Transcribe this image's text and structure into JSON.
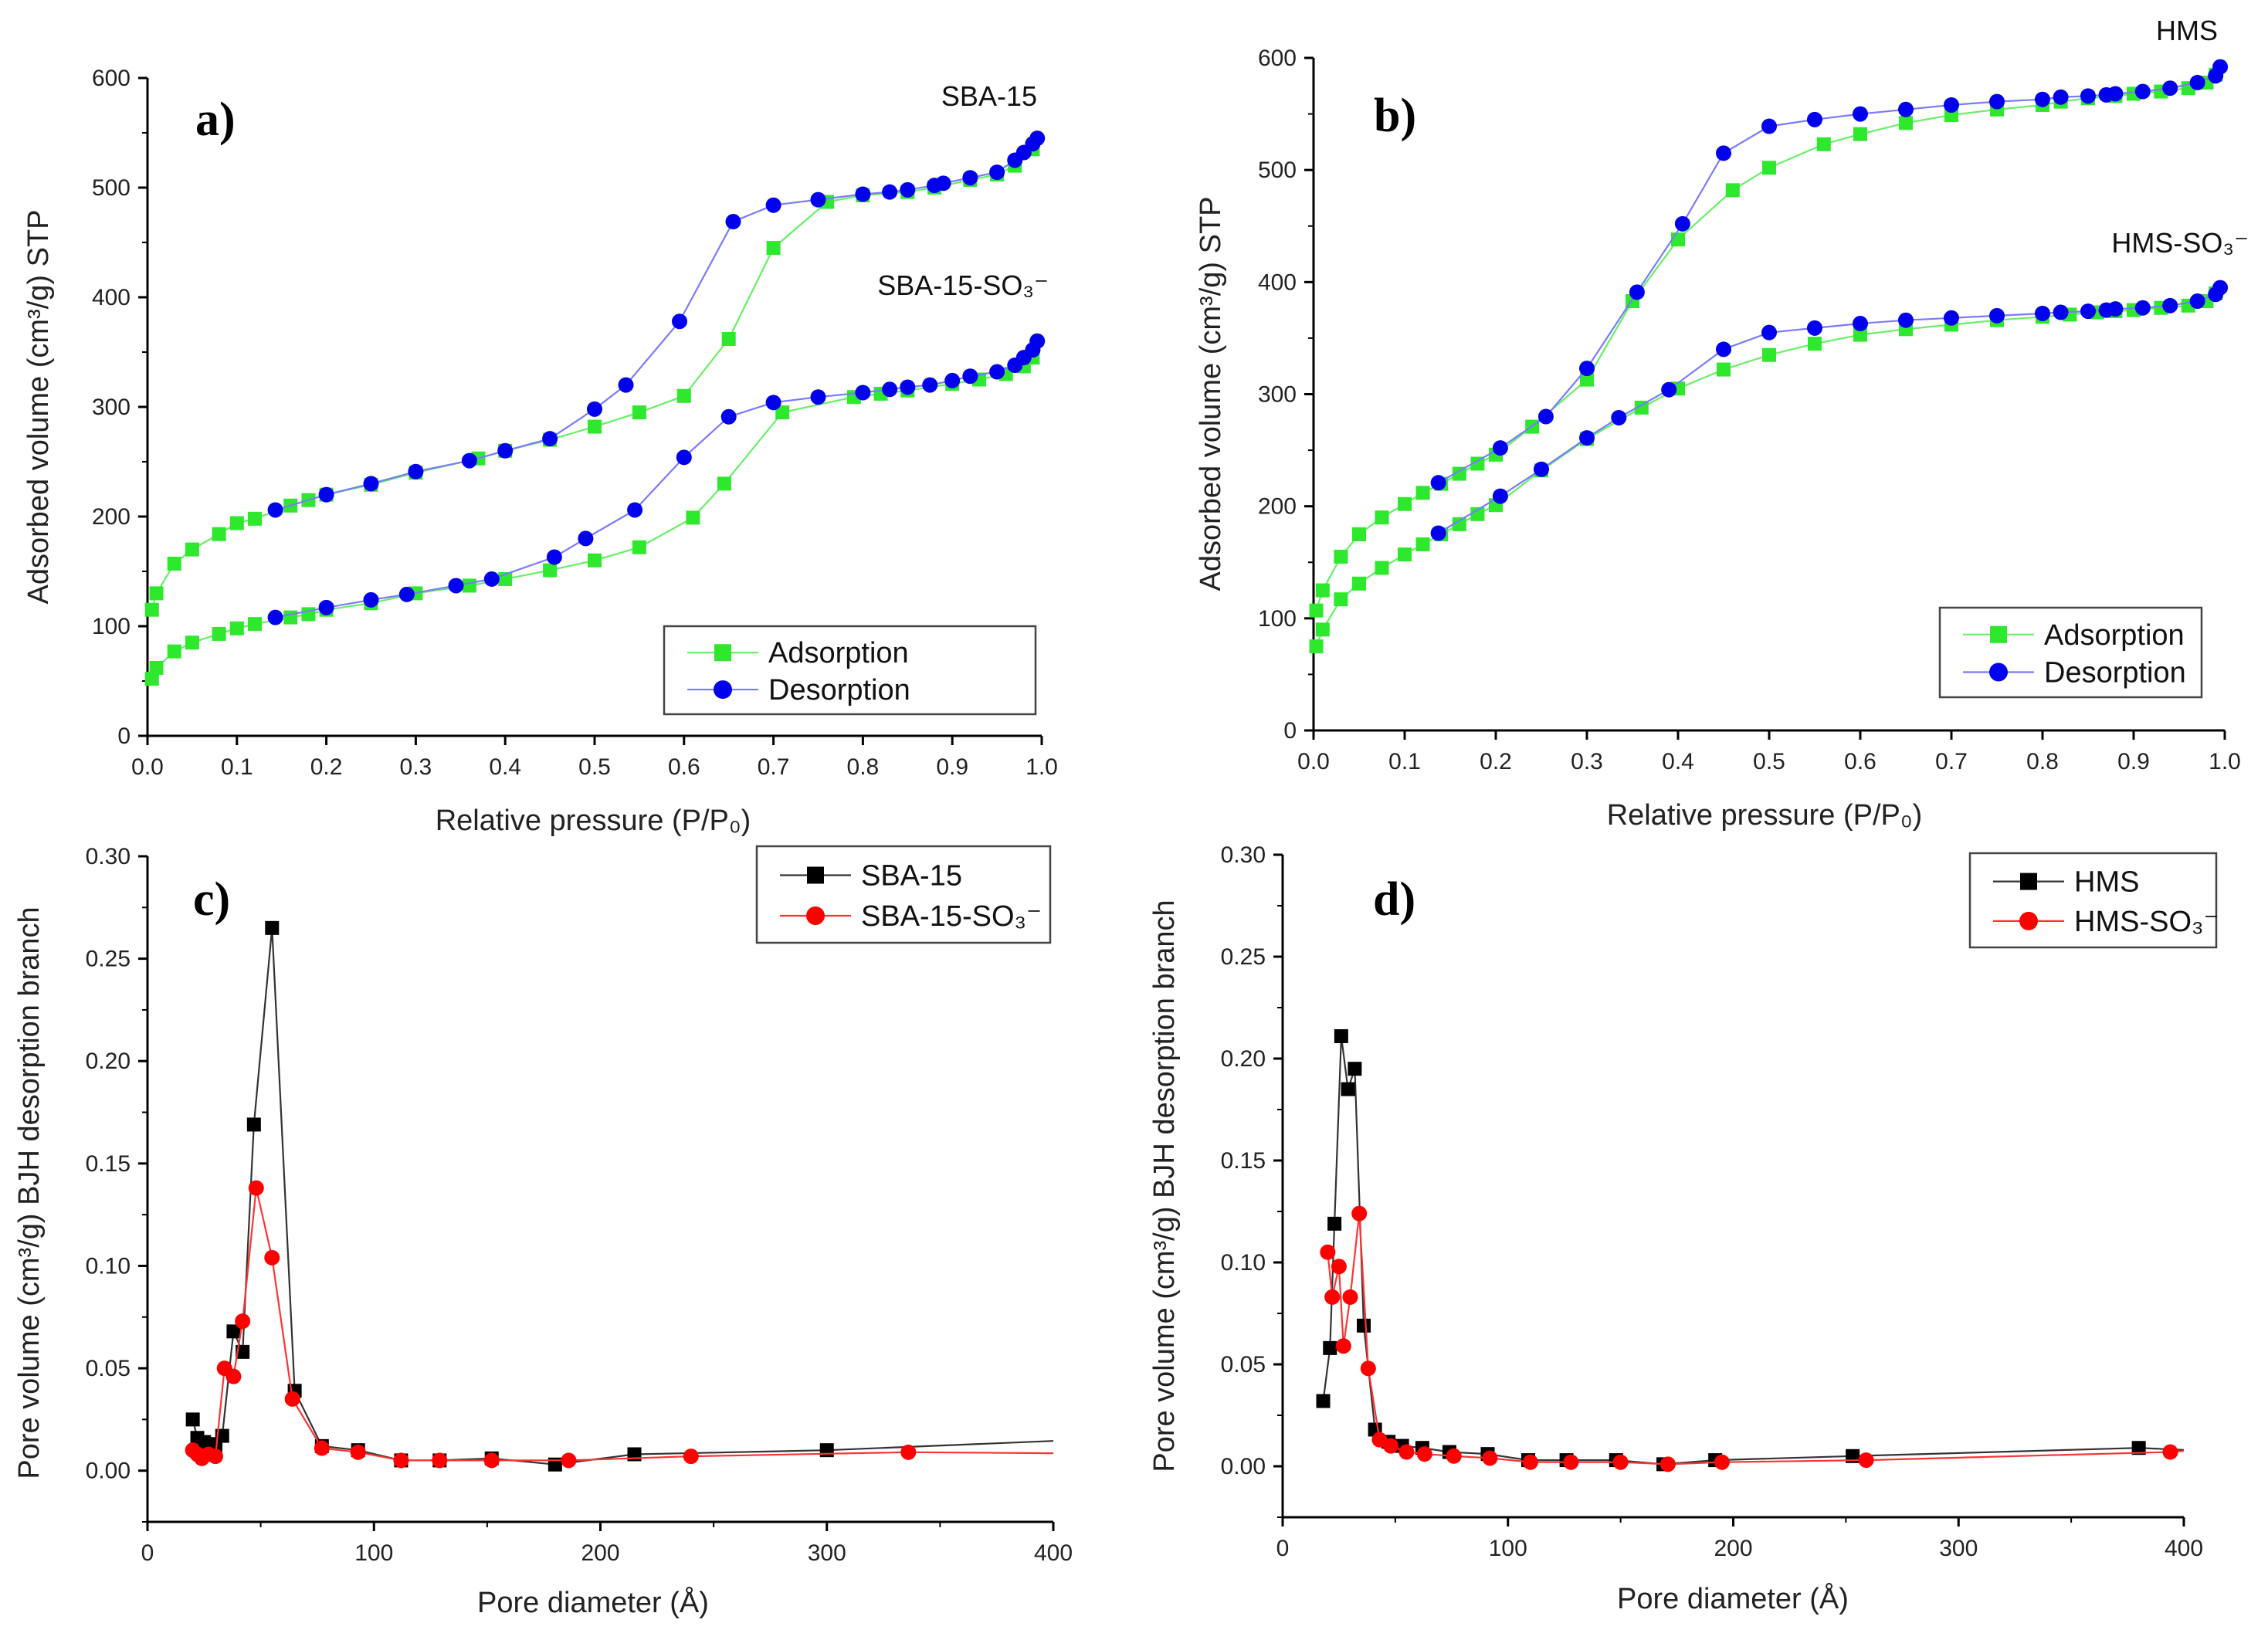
{
  "chart_data": [
    {
      "type": "line",
      "panel_label": "a)",
      "xlabel": "Relative pressure (P/P₀)",
      "ylabel": "Adsorbed volume (cm³/g) STP",
      "xlim": [
        0,
        1.0
      ],
      "ylim": [
        0,
        600
      ],
      "x_ticks": [
        "0.0",
        "0.1",
        "0.2",
        "0.3",
        "0.4",
        "0.5",
        "0.6",
        "0.7",
        "0.8",
        "0.9",
        "1.0"
      ],
      "y_ticks": [
        "0",
        "100",
        "200",
        "300",
        "400",
        "500",
        "600"
      ],
      "legend": {
        "placement": "bottom-right",
        "entries": [
          "Adsorption",
          "Desorption"
        ]
      },
      "annotations": [
        "SBA-15",
        "SBA-15-SO₃⁻"
      ],
      "series": [
        {
          "name": "Adsorption",
          "sample": "SBA-15",
          "color": "#2ee82e",
          "line": "#66f066",
          "marker": "square",
          "x": [
            0.005,
            0.01,
            0.03,
            0.05,
            0.08,
            0.1,
            0.12,
            0.16,
            0.18,
            0.2,
            0.25,
            0.3,
            0.37,
            0.4,
            0.45,
            0.5,
            0.55,
            0.6,
            0.65,
            0.7,
            0.76,
            0.8,
            0.85,
            0.88,
            0.92,
            0.95,
            0.97,
            0.99
          ],
          "y": [
            115,
            130,
            157,
            170,
            184,
            194,
            198,
            210,
            215,
            220,
            229,
            240,
            253,
            260,
            270,
            282,
            295,
            310,
            362,
            445,
            487,
            493,
            496,
            500,
            507,
            512,
            520,
            535
          ]
        },
        {
          "name": "Desorption",
          "sample": "SBA-15",
          "color": "#0000ee",
          "line": "#7a7aff",
          "marker": "circle",
          "x": [
            0.995,
            0.99,
            0.98,
            0.97,
            0.95,
            0.92,
            0.89,
            0.88,
            0.85,
            0.83,
            0.8,
            0.75,
            0.7,
            0.655,
            0.595,
            0.535,
            0.5,
            0.45,
            0.4,
            0.36,
            0.3,
            0.25,
            0.2,
            0.143
          ],
          "y": [
            545,
            540,
            532,
            525,
            514,
            509,
            504,
            502,
            498,
            496,
            494,
            489,
            484,
            469,
            378,
            320,
            298,
            271,
            260,
            251,
            241,
            230,
            220,
            206
          ]
        },
        {
          "name": "Adsorption",
          "sample": "SBA-15-SO₃⁻",
          "color": "#2ee82e",
          "line": "#66f066",
          "marker": "square",
          "x": [
            0.005,
            0.01,
            0.03,
            0.05,
            0.08,
            0.1,
            0.12,
            0.16,
            0.18,
            0.2,
            0.25,
            0.3,
            0.36,
            0.4,
            0.45,
            0.5,
            0.55,
            0.61,
            0.645,
            0.71,
            0.79,
            0.82,
            0.85,
            0.9,
            0.93,
            0.96,
            0.98,
            0.99
          ],
          "y": [
            52,
            62,
            77,
            85,
            93,
            98,
            102,
            108,
            111,
            115,
            121,
            130,
            137,
            143,
            151,
            160,
            172,
            199,
            230,
            295,
            309,
            312,
            315,
            321,
            325,
            330,
            337,
            345
          ]
        },
        {
          "name": "Desorption",
          "sample": "SBA-15-SO₃⁻",
          "color": "#0000ee",
          "line": "#7a7aff",
          "marker": "circle",
          "x": [
            0.995,
            0.99,
            0.98,
            0.97,
            0.95,
            0.92,
            0.9,
            0.875,
            0.85,
            0.83,
            0.8,
            0.75,
            0.7,
            0.65,
            0.6,
            0.545,
            0.49,
            0.455,
            0.385,
            0.345,
            0.29,
            0.25,
            0.2,
            0.143
          ],
          "y": [
            360,
            352,
            345,
            338,
            332,
            328,
            324,
            320,
            318,
            316,
            313,
            309,
            304,
            291,
            254,
            206,
            180,
            163,
            143,
            137,
            129,
            124,
            117,
            108
          ]
        }
      ]
    },
    {
      "type": "line",
      "panel_label": "b)",
      "xlabel": "Relative pressure (P/P₀)",
      "ylabel": "Adsorbed volume (cm³/g) STP",
      "xlim": [
        0,
        1.0
      ],
      "ylim": [
        0,
        600
      ],
      "x_ticks": [
        "0.0",
        "0.1",
        "0.2",
        "0.3",
        "0.4",
        "0.5",
        "0.6",
        "0.7",
        "0.8",
        "0.9",
        "1.0"
      ],
      "y_ticks": [
        "0",
        "100",
        "200",
        "300",
        "400",
        "500",
        "600"
      ],
      "legend": {
        "placement": "bottom-right",
        "entries": [
          "Adsorption",
          "Desorption"
        ]
      },
      "annotations": [
        "HMS",
        "HMS-SO₃⁻"
      ],
      "series": [
        {
          "name": "Adsorption",
          "sample": "HMS",
          "color": "#2ee82e",
          "line": "#66f066",
          "marker": "square",
          "x": [
            0.003,
            0.01,
            0.03,
            0.05,
            0.075,
            0.1,
            0.12,
            0.14,
            0.16,
            0.18,
            0.2,
            0.24,
            0.3,
            0.35,
            0.4,
            0.46,
            0.5,
            0.56,
            0.6,
            0.65,
            0.7,
            0.75,
            0.8,
            0.82,
            0.85,
            0.88,
            0.9,
            0.93,
            0.96,
            0.98,
            0.99
          ],
          "y": [
            107,
            125,
            155,
            175,
            190,
            202,
            212,
            220,
            229,
            238,
            246,
            271,
            313,
            383,
            438,
            482,
            502,
            523,
            532,
            542,
            549,
            554,
            558,
            561,
            564,
            566,
            568,
            570,
            573,
            578,
            585
          ]
        },
        {
          "name": "Desorption",
          "sample": "HMS",
          "color": "#0000ee",
          "line": "#7a7aff",
          "marker": "circle",
          "x": [
            0.995,
            0.99,
            0.97,
            0.94,
            0.91,
            0.88,
            0.87,
            0.85,
            0.82,
            0.8,
            0.75,
            0.7,
            0.65,
            0.6,
            0.55,
            0.5,
            0.45,
            0.405,
            0.355,
            0.3,
            0.255,
            0.205,
            0.137
          ],
          "y": [
            592,
            584,
            578,
            573,
            570,
            568,
            567,
            566,
            565,
            563,
            561,
            558,
            554,
            550,
            545,
            539,
            515,
            452,
            391,
            323,
            280,
            252,
            221
          ]
        },
        {
          "name": "Adsorption",
          "sample": "HMS-SO₃⁻",
          "color": "#2ee82e",
          "line": "#66f066",
          "marker": "square",
          "x": [
            0.003,
            0.01,
            0.03,
            0.05,
            0.075,
            0.1,
            0.12,
            0.14,
            0.16,
            0.18,
            0.2,
            0.25,
            0.3,
            0.36,
            0.4,
            0.45,
            0.5,
            0.55,
            0.6,
            0.65,
            0.7,
            0.75,
            0.8,
            0.83,
            0.86,
            0.88,
            0.9,
            0.93,
            0.96,
            0.98,
            0.99
          ],
          "y": [
            75,
            90,
            117,
            131,
            145,
            157,
            166,
            175,
            184,
            193,
            201,
            232,
            260,
            288,
            305,
            322,
            335,
            345,
            353,
            358,
            362,
            366,
            369,
            371,
            373,
            374,
            375,
            377,
            379,
            383,
            390
          ]
        },
        {
          "name": "Desorption",
          "sample": "HMS-SO₃⁻",
          "color": "#0000ee",
          "line": "#7a7aff",
          "marker": "circle",
          "x": [
            0.995,
            0.99,
            0.97,
            0.94,
            0.91,
            0.88,
            0.87,
            0.85,
            0.82,
            0.8,
            0.75,
            0.7,
            0.65,
            0.6,
            0.55,
            0.5,
            0.45,
            0.39,
            0.335,
            0.3,
            0.25,
            0.205,
            0.137
          ],
          "y": [
            395,
            389,
            383,
            379,
            377,
            376,
            375,
            374,
            373,
            372,
            370,
            368,
            366,
            363,
            359,
            355,
            340,
            304,
            279,
            261,
            233,
            209,
            176
          ]
        }
      ]
    },
    {
      "type": "line",
      "panel_label": "c)",
      "xlabel": "Pore diameter (Å)",
      "ylabel": "Pore volume (cm³/g) BJH desorption branch",
      "xlim": [
        0,
        400
      ],
      "ylim": [
        -0.025,
        0.3
      ],
      "x_ticks": [
        "0",
        "100",
        "200",
        "300",
        "400"
      ],
      "y_ticks": [
        "0.00",
        "0.05",
        "0.10",
        "0.15",
        "0.20",
        "0.25",
        "0.30"
      ],
      "legend": {
        "placement": "top-right",
        "entries": [
          "SBA-15",
          "SBA-15-SO₃⁻"
        ]
      },
      "series": [
        {
          "name": "SBA-15",
          "color": "#000000",
          "line": "#333333",
          "marker": "square",
          "x": [
            20,
            22,
            25,
            28,
            30,
            33,
            38,
            42,
            47,
            55,
            65,
            77,
            93,
            112,
            129,
            152,
            180,
            215,
            300
          ],
          "y": [
            0.025,
            0.016,
            0.014,
            0.013,
            0.011,
            0.017,
            0.068,
            0.058,
            0.169,
            0.265,
            0.039,
            0.012,
            0.01,
            0.005,
            0.005,
            0.006,
            0.003,
            0.008,
            0.01
          ],
          "line_end": [
            400,
            0.0145
          ]
        },
        {
          "name": "SBA-15-SO₃⁻",
          "color": "#ff0000",
          "line": "#ff3333",
          "marker": "circle",
          "x": [
            20,
            22,
            24,
            27,
            30,
            34,
            38,
            42,
            48,
            55,
            64,
            77,
            93,
            112,
            129,
            152,
            186,
            240,
            336
          ],
          "y": [
            0.01,
            0.008,
            0.006,
            0.008,
            0.007,
            0.05,
            0.046,
            0.073,
            0.138,
            0.104,
            0.035,
            0.011,
            0.009,
            0.005,
            0.005,
            0.005,
            0.005,
            0.007,
            0.009
          ],
          "line_end": [
            400,
            0.0085
          ]
        }
      ]
    },
    {
      "type": "line",
      "panel_label": "d)",
      "xlabel": "Pore diameter (Å)",
      "ylabel": "Pore volume (cm³/g) BJH desorption branch",
      "xlim": [
        0,
        400
      ],
      "ylim": [
        -0.025,
        0.3
      ],
      "x_ticks": [
        "0",
        "100",
        "200",
        "300",
        "400"
      ],
      "y_ticks": [
        "0.00",
        "0.05",
        "0.10",
        "0.15",
        "0.20",
        "0.25",
        "0.30"
      ],
      "legend": {
        "placement": "top-right",
        "entries": [
          "HMS",
          "HMS-SO₃⁻"
        ]
      },
      "series": [
        {
          "name": "HMS",
          "color": "#000000",
          "line": "#333333",
          "marker": "square",
          "x": [
            18,
            21,
            23,
            26,
            29,
            32,
            36,
            41,
            47,
            53,
            62,
            74,
            91,
            109,
            126,
            148,
            169,
            192,
            253,
            380
          ],
          "y": [
            0.032,
            0.058,
            0.119,
            0.211,
            0.185,
            0.195,
            0.069,
            0.018,
            0.012,
            0.01,
            0.009,
            0.007,
            0.006,
            0.003,
            0.003,
            0.003,
            0.001,
            0.003,
            0.005,
            0.009
          ],
          "line_end": [
            400,
            0.008
          ]
        },
        {
          "name": "HMS-SO₃⁻",
          "color": "#ff0000",
          "line": "#ff3333",
          "marker": "circle",
          "x": [
            20,
            22,
            25,
            27,
            30,
            34,
            38,
            43,
            48,
            55,
            63,
            76,
            92,
            110,
            128,
            150,
            171,
            195,
            259,
            394
          ],
          "y": [
            0.105,
            0.083,
            0.098,
            0.059,
            0.083,
            0.124,
            0.048,
            0.013,
            0.01,
            0.007,
            0.006,
            0.005,
            0.004,
            0.002,
            0.002,
            0.002,
            0.001,
            0.002,
            0.003,
            0.007
          ],
          "line_end": [
            400,
            0.0075
          ]
        }
      ]
    }
  ]
}
